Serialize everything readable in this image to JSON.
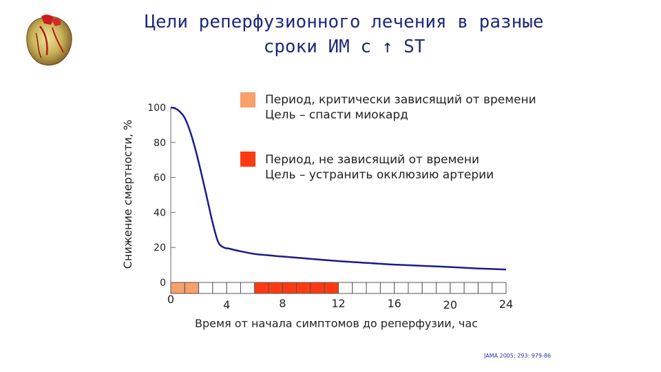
{
  "title": {
    "line1": "Цели реперфузионного лечения в разные",
    "line2": "сроки ИМ с ↑ ST"
  },
  "icons": {
    "logo": "heart-anatomy-icon"
  },
  "legend": [
    {
      "line1": "Период, критически зависящий от времени",
      "line2": "Цель – спасти миокард",
      "color": "#f7a06a"
    },
    {
      "line1": "Период, не зависящий от времени",
      "line2": "Цель – устранить окклюзию артерии",
      "color": "#ff3a10"
    }
  ],
  "source": "JAMA 2005; 293: 979-86",
  "chart_data": {
    "type": "line",
    "xlabel": "Время от начала симптомов до реперфузии, час",
    "ylabel": "Снижение смертности, %",
    "xlim": [
      0,
      24
    ],
    "ylim": [
      0,
      100
    ],
    "xticks": [
      "0",
      "4",
      "8",
      "12",
      "16",
      "20",
      "24"
    ],
    "yticks": [
      "0",
      "20",
      "40",
      "60",
      "80",
      "100"
    ],
    "grid": false,
    "legend_position": "top-right",
    "line_color": "#1a1a8c",
    "series": [
      {
        "x": [
          0,
          0.3,
          0.6,
          1.0,
          1.4,
          1.8,
          2.2,
          2.6,
          3.0,
          3.4,
          3.8,
          4.2,
          4.6,
          5,
          6,
          7,
          8,
          10,
          12,
          14,
          16,
          18,
          20,
          22,
          24
        ],
        "values": [
          100,
          99.5,
          98,
          94,
          86,
          75,
          62,
          48,
          34,
          23,
          20,
          19.3,
          18.5,
          17.8,
          16.3,
          15.5,
          14.8,
          13.5,
          12.2,
          11.2,
          10.2,
          9.5,
          8.8,
          8,
          7.4
        ]
      }
    ],
    "time_bands": {
      "segments_count": 24,
      "critical": {
        "from": 0,
        "to": 2,
        "color": "#f7a06a"
      },
      "non_critical": {
        "from": 6,
        "to": 12,
        "color": "#ff3a10"
      }
    }
  }
}
